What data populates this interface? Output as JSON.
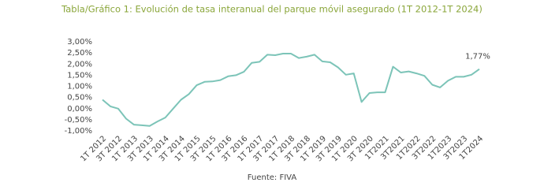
{
  "chart_data": {
    "type": "line",
    "title": "Tabla/Gráfico 1: Evolución de tasa interanual del parque móvil asegurado (1T 2012-1T 2024)",
    "source": "Fuente: FIVA",
    "categories": [
      "1T 2012",
      null,
      "3T 2012",
      null,
      "1T 2013",
      null,
      "3T 2013",
      null,
      "1T 2014",
      null,
      "3T 2014",
      null,
      "1T 2015",
      null,
      "3T 2015",
      null,
      "1T 2016",
      null,
      "3T 2016",
      null,
      "1T 2017",
      null,
      "3T 2017",
      null,
      "1T 2018",
      null,
      "3T 2018",
      null,
      "1T 2019",
      null,
      "3T 2019",
      null,
      "1T 2020",
      null,
      "3T 2020",
      null,
      "1T2021",
      null,
      "3T2021",
      null,
      "1T2022",
      null,
      "3T2022",
      null,
      "1T2023",
      null,
      "3T2023",
      null,
      "1T2024"
    ],
    "values": [
      0.4,
      0.1,
      0.0,
      -0.45,
      -0.72,
      -0.75,
      -0.78,
      -0.58,
      -0.4,
      0.0,
      0.4,
      0.65,
      1.05,
      1.2,
      1.22,
      1.28,
      1.45,
      1.5,
      1.65,
      2.05,
      2.1,
      2.42,
      2.4,
      2.47,
      2.47,
      2.27,
      2.33,
      2.42,
      2.12,
      2.08,
      1.85,
      1.52,
      1.58,
      0.3,
      0.7,
      0.73,
      0.73,
      1.88,
      1.62,
      1.67,
      1.58,
      1.47,
      1.07,
      0.95,
      1.25,
      1.43,
      1.43,
      1.52,
      1.77
    ],
    "value_labels": [
      null,
      null,
      null,
      null,
      null,
      null,
      null,
      null,
      null,
      null,
      null,
      null,
      null,
      null,
      null,
      null,
      null,
      null,
      null,
      null,
      null,
      null,
      null,
      null,
      null,
      null,
      null,
      null,
      null,
      null,
      null,
      null,
      null,
      null,
      null,
      null,
      null,
      null,
      null,
      null,
      null,
      null,
      null,
      null,
      null,
      null,
      null,
      null,
      "1,77%"
    ],
    "color": "#7cc4b8",
    "ylim": [
      -1,
      3
    ],
    "yticks": [
      {
        "value": -1,
        "label": "-1,00%"
      },
      {
        "value": -0.5,
        "label": "-0,50%"
      },
      {
        "value": 0,
        "label": "0,00%"
      },
      {
        "value": 0.5,
        "label": "0,50%"
      },
      {
        "value": 1,
        "label": "1,00%"
      },
      {
        "value": 1.5,
        "label": "1,50%"
      },
      {
        "value": 2,
        "label": "2,00%"
      },
      {
        "value": 2.5,
        "label": "2,50%"
      },
      {
        "value": 3,
        "label": "3,00%"
      }
    ],
    "grid": false
  }
}
